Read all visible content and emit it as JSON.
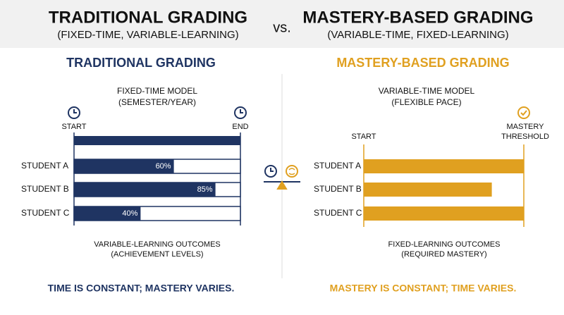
{
  "header": {
    "left_title": "TRADITIONAL GRADING",
    "left_subtitle": "(FIXED-TIME, VARIABLE-LEARNING)",
    "vs": "vs.",
    "right_title": "MASTERY-BASED GRADING",
    "right_subtitle": "(VARIABLE-TIME, FIXED-LEARNING)"
  },
  "traditional": {
    "heading": "TRADITIONAL GRADING",
    "model": "FIXED-TIME MODEL",
    "model_note": "(SEMESTER/YEAR)",
    "start": "START",
    "end": "END",
    "xlim": [
      0,
      100
    ],
    "students": [
      {
        "name": "STUDENT A",
        "value": 60,
        "label": "60%"
      },
      {
        "name": "STUDENT B",
        "value": 85,
        "label": "85%"
      },
      {
        "name": "STUDENT C",
        "value": 40,
        "label": "40%"
      }
    ],
    "outcomes": "VARIABLE-LEARNING OUTCOMES",
    "outcomes_note": "(ACHIEVEMENT LEVELS)",
    "summary": "TIME IS CONSTANT; MASTERY VARIES."
  },
  "mastery": {
    "heading": "MASTERY-BASED GRADING",
    "model": "VARIABLE-TIME MODEL",
    "model_note": "(FLEXIBLE PACE)",
    "start": "START",
    "threshold": [
      "MASTERY",
      "THRESHOLD"
    ],
    "xlim": [
      0,
      100
    ],
    "students": [
      {
        "name": "STUDENT A",
        "value": 100
      },
      {
        "name": "STUDENT B",
        "value": 80
      },
      {
        "name": "STUDENT C",
        "value": 100
      }
    ],
    "outcomes": "FIXED-LEARNING OUTCOMES",
    "outcomes_note": "(REQUIRED MASTERY)",
    "summary": "MASTERY IS CONSTANT; TIME VARIES."
  }
}
